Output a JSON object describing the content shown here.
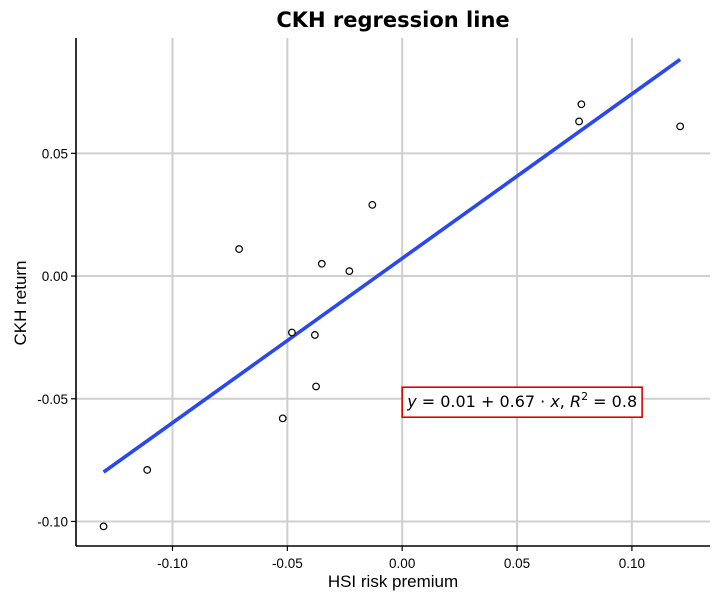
{
  "chart_data": {
    "type": "scatter",
    "title": "CKH regression line",
    "xlabel": "HSI risk premium",
    "ylabel": "CKH return",
    "xlim": [
      -0.142,
      0.134
    ],
    "ylim": [
      -0.11,
      0.097
    ],
    "x_ticks": [
      -0.1,
      -0.05,
      0.0,
      0.05,
      0.1
    ],
    "x_tick_labels": [
      "-0.10",
      "-0.05",
      "0.00",
      "0.05",
      "0.10"
    ],
    "y_ticks": [
      -0.1,
      -0.05,
      0.0,
      0.05
    ],
    "y_tick_labels": [
      "-0.10",
      "-0.05",
      "0.00",
      "0.05"
    ],
    "grid": true,
    "points": [
      {
        "x": -0.13,
        "y": -0.102
      },
      {
        "x": -0.111,
        "y": -0.079
      },
      {
        "x": -0.071,
        "y": 0.011
      },
      {
        "x": -0.052,
        "y": -0.058
      },
      {
        "x": -0.048,
        "y": -0.023
      },
      {
        "x": -0.038,
        "y": -0.024
      },
      {
        "x": -0.0375,
        "y": -0.045
      },
      {
        "x": -0.035,
        "y": 0.005
      },
      {
        "x": -0.023,
        "y": 0.002
      },
      {
        "x": -0.013,
        "y": 0.029
      },
      {
        "x": 0.077,
        "y": 0.063
      },
      {
        "x": 0.078,
        "y": 0.07
      },
      {
        "x": 0.121,
        "y": 0.061
      }
    ],
    "regression": {
      "x_range": [
        -0.13,
        0.121
      ],
      "intercept": 0.0072,
      "slope": 0.67,
      "color": "#2b48f0"
    },
    "annotation": {
      "y_var": "y",
      "x_var": "x",
      "intercept_text": "0.01",
      "slope_text": "0.67",
      "r_var": "R",
      "r2_exp": "2",
      "r2_text": "0.8",
      "anchor": [
        0.0,
        -0.051
      ],
      "border_color": "#e00000"
    }
  }
}
